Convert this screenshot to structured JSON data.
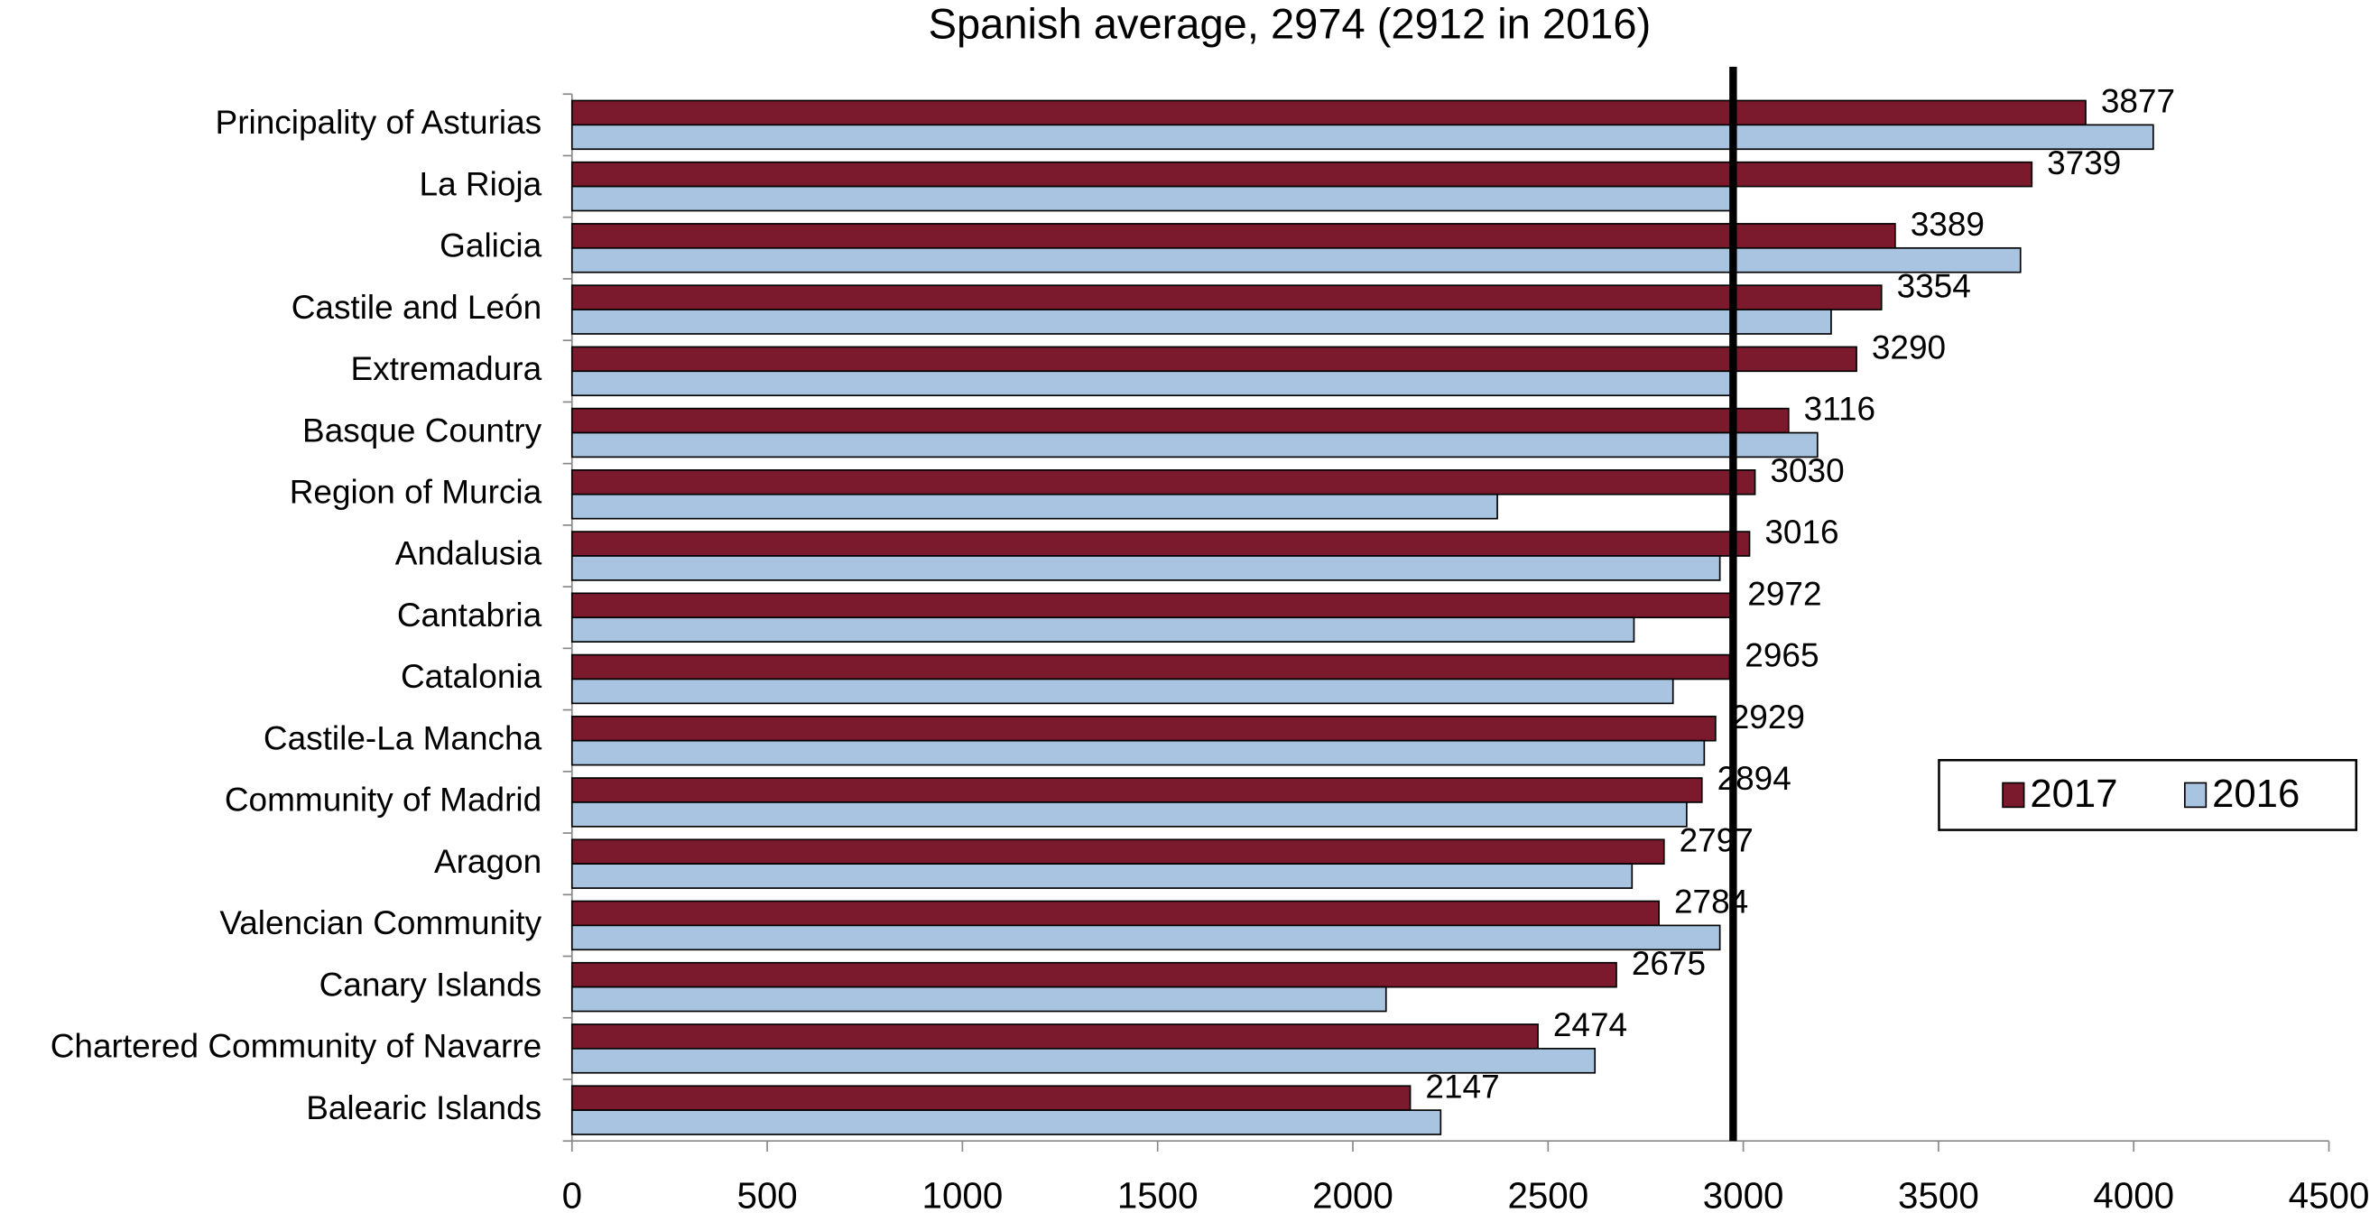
{
  "chart_data": {
    "type": "hbar",
    "title": "Spanish average, 2974 (2912 in 2016)",
    "categories": [
      "Principality of Asturias",
      "La Rioja",
      "Galicia",
      "Castile and León",
      "Extremadura",
      "Basque Country",
      "Region of Murcia",
      "Andalusia",
      "Cantabria",
      "Catalonia",
      "Castile-La Mancha",
      "Community of Madrid",
      "Aragon",
      "Valencian Community",
      "Canary Islands",
      "Chartered Community of Navarre",
      "Balearic Islands"
    ],
    "series": [
      {
        "name": "2017",
        "color": "#7b1a2c",
        "values": [
          3877,
          3739,
          3389,
          3354,
          3290,
          3116,
          3030,
          3016,
          2972,
          2965,
          2929,
          2894,
          2797,
          2784,
          2675,
          2474,
          2147
        ]
      },
      {
        "name": "2016",
        "color": "#a8c4e0",
        "values": [
          4050,
          2970,
          3710,
          3225,
          2970,
          3190,
          2370,
          2940,
          2720,
          2820,
          2900,
          2855,
          2715,
          2940,
          2085,
          2620,
          2225
        ]
      }
    ],
    "reference_line": 2974,
    "xlim": [
      0,
      4500
    ],
    "xticks": [
      0,
      500,
      1000,
      1500,
      2000,
      2500,
      3000,
      3500,
      4000,
      4500
    ],
    "legend": "right"
  }
}
